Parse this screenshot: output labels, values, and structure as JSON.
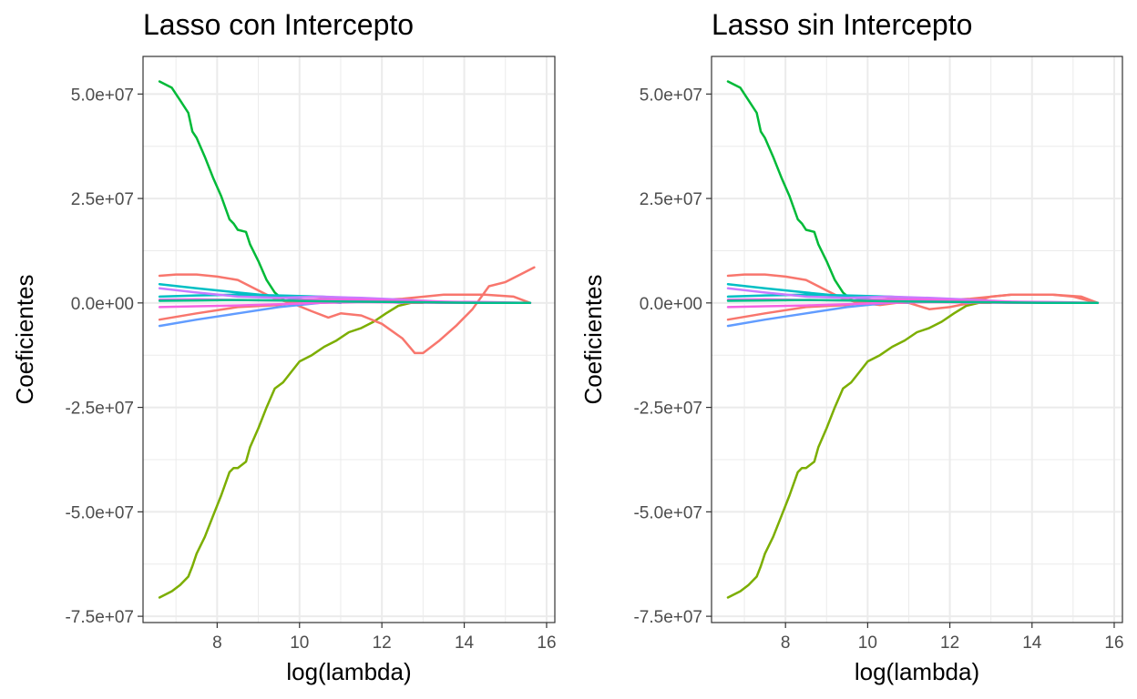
{
  "chart_data": [
    {
      "type": "line",
      "title": "Lasso con Intercepto",
      "xlabel": "log(lambda)",
      "ylabel": "Coeficientes",
      "xlim": [
        6.2,
        16.2
      ],
      "ylim": [
        -76500000,
        59000000
      ],
      "xticks": [
        8,
        10,
        12,
        14,
        16
      ],
      "xtick_labels": [
        "8",
        "10",
        "12",
        "14",
        "16"
      ],
      "yticks": [
        -75000000,
        -50000000,
        -25000000,
        0,
        25000000,
        50000000
      ],
      "ytick_labels": [
        "-7.5e+07",
        "-5.0e+07",
        "-2.5e+07",
        "0.0e+00",
        "2.5e+07",
        "5.0e+07"
      ],
      "grid": true,
      "series": [
        {
          "color": "#00ba38",
          "x": [
            6.6,
            6.9,
            7.1,
            7.3,
            7.4,
            7.5,
            7.7,
            7.9,
            8.1,
            8.3,
            8.4,
            8.5,
            8.7,
            8.8,
            9.0,
            9.2,
            9.4,
            9.6,
            9.8
          ],
          "y": [
            53000000,
            51500000,
            48500000,
            45500000,
            41000000,
            39500000,
            35000000,
            30000000,
            25500000,
            20000000,
            19000000,
            17500000,
            17000000,
            14000000,
            10000000,
            5500000,
            2500000,
            800000,
            0
          ]
        },
        {
          "color": "#7cae00",
          "x": [
            6.6,
            6.9,
            7.1,
            7.3,
            7.4,
            7.5,
            7.7,
            7.9,
            8.1,
            8.3,
            8.4,
            8.5,
            8.7,
            8.8,
            9.0,
            9.2,
            9.4,
            9.6,
            9.8,
            10.0,
            10.3,
            10.6,
            10.9,
            11.2,
            11.5,
            11.8,
            12.1,
            12.4,
            12.7,
            13.0
          ],
          "y": [
            -70500000,
            -69000000,
            -67500000,
            -65500000,
            -63000000,
            -60000000,
            -56000000,
            -51000000,
            -46000000,
            -40500000,
            -39500000,
            -39500000,
            -38000000,
            -34500000,
            -30000000,
            -25000000,
            -20500000,
            -19000000,
            -16500000,
            -14000000,
            -12500000,
            -10500000,
            -9000000,
            -7000000,
            -6000000,
            -4500000,
            -2500000,
            -700000,
            0,
            0
          ]
        },
        {
          "color": "#f8766d",
          "x": [
            6.6,
            7.0,
            7.5,
            8.0,
            8.5,
            9.0,
            9.4,
            9.8,
            10.3,
            10.7,
            11.0,
            11.5,
            12.0,
            12.5,
            12.8,
            13.0,
            13.4,
            13.8,
            14.2,
            14.6,
            15.0,
            15.4,
            15.7
          ],
          "y": [
            6500000,
            6800000,
            6800000,
            6300000,
            5500000,
            3000000,
            1000000,
            0,
            -2000000,
            -3500000,
            -2500000,
            -3000000,
            -5000000,
            -8500000,
            -12000000,
            -12000000,
            -9000000,
            -5500000,
            -1500000,
            4000000,
            5000000,
            7000000,
            8500000
          ]
        },
        {
          "color": "#f8766d",
          "x": [
            6.6,
            7.5,
            8.5,
            9.5,
            10.5,
            11.5,
            12.5,
            13.5,
            14.5,
            15.2,
            15.6
          ],
          "y": [
            -4000000,
            -2500000,
            -1000000,
            -500000,
            1000000,
            500000,
            1000000,
            2000000,
            2000000,
            1500000,
            0
          ]
        },
        {
          "color": "#00bfc4",
          "x": [
            6.6,
            7.5,
            8.5,
            9.5,
            10.3,
            11.0
          ],
          "y": [
            4500000,
            3500000,
            2500000,
            1500000,
            500000,
            0
          ]
        },
        {
          "color": "#619cff",
          "x": [
            6.6,
            7.5,
            8.5,
            9.5,
            10.5,
            11.5,
            12.5
          ],
          "y": [
            -5500000,
            -4000000,
            -2500000,
            -1000000,
            0,
            500000,
            0
          ]
        },
        {
          "color": "#00bfc4",
          "x": [
            6.6,
            7.5,
            8.5,
            9.5,
            10.5,
            11.5,
            12.5,
            13.5
          ],
          "y": [
            1500000,
            1800000,
            2000000,
            1800000,
            1500000,
            1000000,
            500000,
            0
          ]
        },
        {
          "color": "#c77cff",
          "x": [
            6.6,
            7.5,
            8.5,
            9.5,
            10.5,
            11.5,
            12.5,
            13.5,
            14.5,
            15.6
          ],
          "y": [
            3500000,
            2500000,
            1500000,
            1200000,
            1500000,
            1200000,
            800000,
            300000,
            0,
            0
          ]
        },
        {
          "color": "#f564e3",
          "x": [
            6.6,
            7.5,
            8.5,
            9.5,
            10.5,
            11.5,
            12.5,
            13.5,
            14.5,
            15.6
          ],
          "y": [
            800000,
            900000,
            700000,
            600000,
            900000,
            800000,
            500000,
            300000,
            200000,
            0
          ]
        },
        {
          "color": "#f564e3",
          "x": [
            6.6,
            7.5,
            8.5,
            9.5,
            10.5,
            11.5,
            12.5,
            13.5,
            14.5,
            15.6
          ],
          "y": [
            -1000000,
            -800000,
            -600000,
            -300000,
            0,
            200000,
            100000,
            0,
            0,
            0
          ]
        },
        {
          "color": "#00c08b",
          "x": [
            6.6,
            7.5,
            8.5,
            9.5,
            10.5,
            11.5,
            12.5,
            13.5,
            14.5,
            15.6
          ],
          "y": [
            500000,
            600000,
            700000,
            600000,
            400000,
            300000,
            200000,
            100000,
            0,
            0
          ]
        }
      ]
    },
    {
      "type": "line",
      "title": "Lasso sin Intercepto",
      "xlabel": "log(lambda)",
      "ylabel": "Coeficientes",
      "xlim": [
        6.2,
        16.2
      ],
      "ylim": [
        -76500000,
        59000000
      ],
      "xticks": [
        8,
        10,
        12,
        14,
        16
      ],
      "xtick_labels": [
        "8",
        "10",
        "12",
        "14",
        "16"
      ],
      "yticks": [
        -75000000,
        -50000000,
        -25000000,
        0,
        25000000,
        50000000
      ],
      "ytick_labels": [
        "-7.5e+07",
        "-5.0e+07",
        "-2.5e+07",
        "0.0e+00",
        "2.5e+07",
        "5.0e+07"
      ],
      "grid": true,
      "series": [
        {
          "color": "#00ba38",
          "x": [
            6.6,
            6.9,
            7.1,
            7.3,
            7.4,
            7.5,
            7.7,
            7.9,
            8.1,
            8.3,
            8.4,
            8.5,
            8.7,
            8.8,
            9.0,
            9.2,
            9.4,
            9.6,
            9.8
          ],
          "y": [
            53000000,
            51500000,
            48500000,
            45500000,
            41000000,
            39500000,
            35000000,
            30000000,
            25500000,
            20000000,
            19000000,
            17500000,
            17000000,
            14000000,
            10000000,
            5500000,
            2500000,
            800000,
            0
          ]
        },
        {
          "color": "#7cae00",
          "x": [
            6.6,
            6.9,
            7.1,
            7.3,
            7.4,
            7.5,
            7.7,
            7.9,
            8.1,
            8.3,
            8.4,
            8.5,
            8.7,
            8.8,
            9.0,
            9.2,
            9.4,
            9.6,
            9.8,
            10.0,
            10.3,
            10.6,
            10.9,
            11.2,
            11.5,
            11.8,
            12.1,
            12.4,
            12.7,
            13.0
          ],
          "y": [
            -70500000,
            -69000000,
            -67500000,
            -65500000,
            -63000000,
            -60000000,
            -56000000,
            -51000000,
            -46000000,
            -40500000,
            -39500000,
            -39500000,
            -38000000,
            -34500000,
            -30000000,
            -25000000,
            -20500000,
            -19000000,
            -16500000,
            -14000000,
            -12500000,
            -10500000,
            -9000000,
            -7000000,
            -6000000,
            -4500000,
            -2500000,
            -700000,
            0,
            0
          ]
        },
        {
          "color": "#f8766d",
          "x": [
            6.6,
            7.0,
            7.5,
            8.0,
            8.5,
            9.0,
            9.4,
            9.8,
            10.3,
            10.7,
            11.0,
            11.5,
            12.0,
            12.5,
            13.0,
            13.5,
            14.0,
            14.5,
            15.0,
            15.4,
            15.6
          ],
          "y": [
            6500000,
            6800000,
            6800000,
            6300000,
            5500000,
            3000000,
            1000000,
            0,
            -500000,
            0,
            0,
            -1500000,
            -1000000,
            0,
            1500000,
            2000000,
            2000000,
            2000000,
            1500000,
            500000,
            0
          ]
        },
        {
          "color": "#f8766d",
          "x": [
            6.6,
            7.5,
            8.5,
            9.5,
            10.5,
            11.5,
            12.5,
            13.5,
            14.5,
            15.2,
            15.6
          ],
          "y": [
            -4000000,
            -2500000,
            -1000000,
            -500000,
            1000000,
            500000,
            1000000,
            2000000,
            2000000,
            1500000,
            0
          ]
        },
        {
          "color": "#00bfc4",
          "x": [
            6.6,
            7.5,
            8.5,
            9.5,
            10.3,
            11.0
          ],
          "y": [
            4500000,
            3500000,
            2500000,
            1500000,
            500000,
            0
          ]
        },
        {
          "color": "#619cff",
          "x": [
            6.6,
            7.5,
            8.5,
            9.5,
            10.5,
            11.5,
            12.5
          ],
          "y": [
            -5500000,
            -4000000,
            -2500000,
            -1000000,
            0,
            500000,
            0
          ]
        },
        {
          "color": "#00bfc4",
          "x": [
            6.6,
            7.5,
            8.5,
            9.5,
            10.5,
            11.5,
            12.5,
            13.5
          ],
          "y": [
            1500000,
            1800000,
            2000000,
            1800000,
            1500000,
            1000000,
            500000,
            0
          ]
        },
        {
          "color": "#c77cff",
          "x": [
            6.6,
            7.5,
            8.5,
            9.5,
            10.5,
            11.5,
            12.5,
            13.5,
            14.5,
            15.6
          ],
          "y": [
            3500000,
            2500000,
            1500000,
            1200000,
            1500000,
            1200000,
            800000,
            300000,
            0,
            0
          ]
        },
        {
          "color": "#f564e3",
          "x": [
            6.6,
            7.5,
            8.5,
            9.5,
            10.5,
            11.5,
            12.5,
            13.5,
            14.5,
            15.6
          ],
          "y": [
            800000,
            900000,
            700000,
            600000,
            900000,
            800000,
            500000,
            300000,
            200000,
            0
          ]
        },
        {
          "color": "#f564e3",
          "x": [
            6.6,
            7.5,
            8.5,
            9.5,
            10.5,
            11.5,
            12.5,
            13.5,
            14.5,
            15.6
          ],
          "y": [
            -1000000,
            -800000,
            -600000,
            -300000,
            0,
            200000,
            100000,
            0,
            0,
            0
          ]
        },
        {
          "color": "#00c08b",
          "x": [
            6.6,
            7.5,
            8.5,
            9.5,
            10.5,
            11.5,
            12.5,
            13.5,
            14.5,
            15.6
          ],
          "y": [
            500000,
            600000,
            700000,
            600000,
            400000,
            300000,
            200000,
            100000,
            0,
            0
          ]
        }
      ]
    }
  ]
}
